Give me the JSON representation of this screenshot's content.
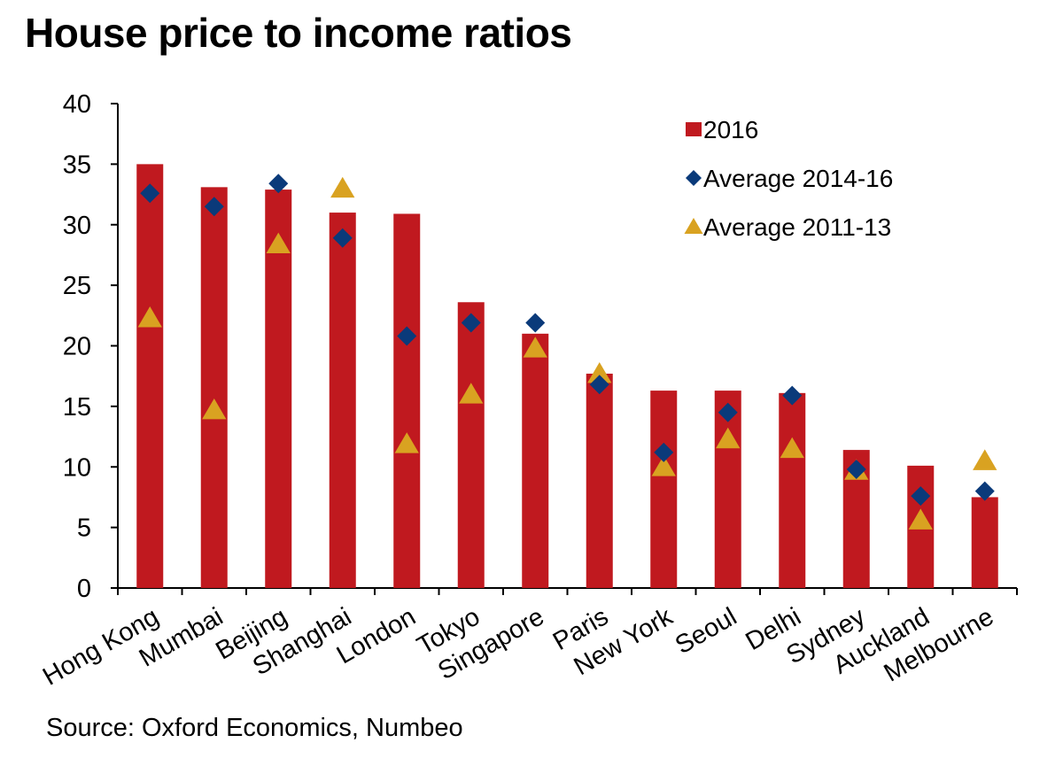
{
  "chart_data": {
    "type": "bar",
    "title": "House price to income ratios",
    "source": "Source: Oxford Economics, Numbeo",
    "xlabel": "",
    "ylabel": "",
    "ylim": [
      0,
      40
    ],
    "yticks": [
      0,
      5,
      10,
      15,
      20,
      25,
      30,
      35,
      40
    ],
    "categories": [
      "Hong Kong",
      "Mumbai",
      "Beijing",
      "Shanghai",
      "London",
      "Tokyo",
      "Singapore",
      "Paris",
      "New York",
      "Seoul",
      "Delhi",
      "Sydney",
      "Auckland",
      "Melbourne"
    ],
    "series": [
      {
        "name": "2016",
        "marker": "bar",
        "color": "#C0191F",
        "values": [
          35.0,
          33.1,
          32.9,
          31.0,
          30.9,
          23.6,
          21.0,
          17.7,
          16.3,
          16.3,
          16.1,
          11.4,
          10.1,
          7.5
        ]
      },
      {
        "name": "Average 2014-16",
        "marker": "diamond",
        "color": "#0A3A7A",
        "values": [
          32.6,
          31.5,
          33.4,
          28.9,
          20.8,
          21.9,
          21.9,
          16.8,
          11.2,
          14.5,
          15.9,
          9.8,
          7.6,
          8.0
        ]
      },
      {
        "name": "Average 2011-13",
        "marker": "triangle",
        "color": "#D9A221",
        "values": [
          22.3,
          14.7,
          28.4,
          33.0,
          11.9,
          16.0,
          19.8,
          17.7,
          10.0,
          12.3,
          11.5,
          9.7,
          5.6,
          10.5
        ]
      }
    ],
    "legend_position": "top-right",
    "grid": false
  }
}
